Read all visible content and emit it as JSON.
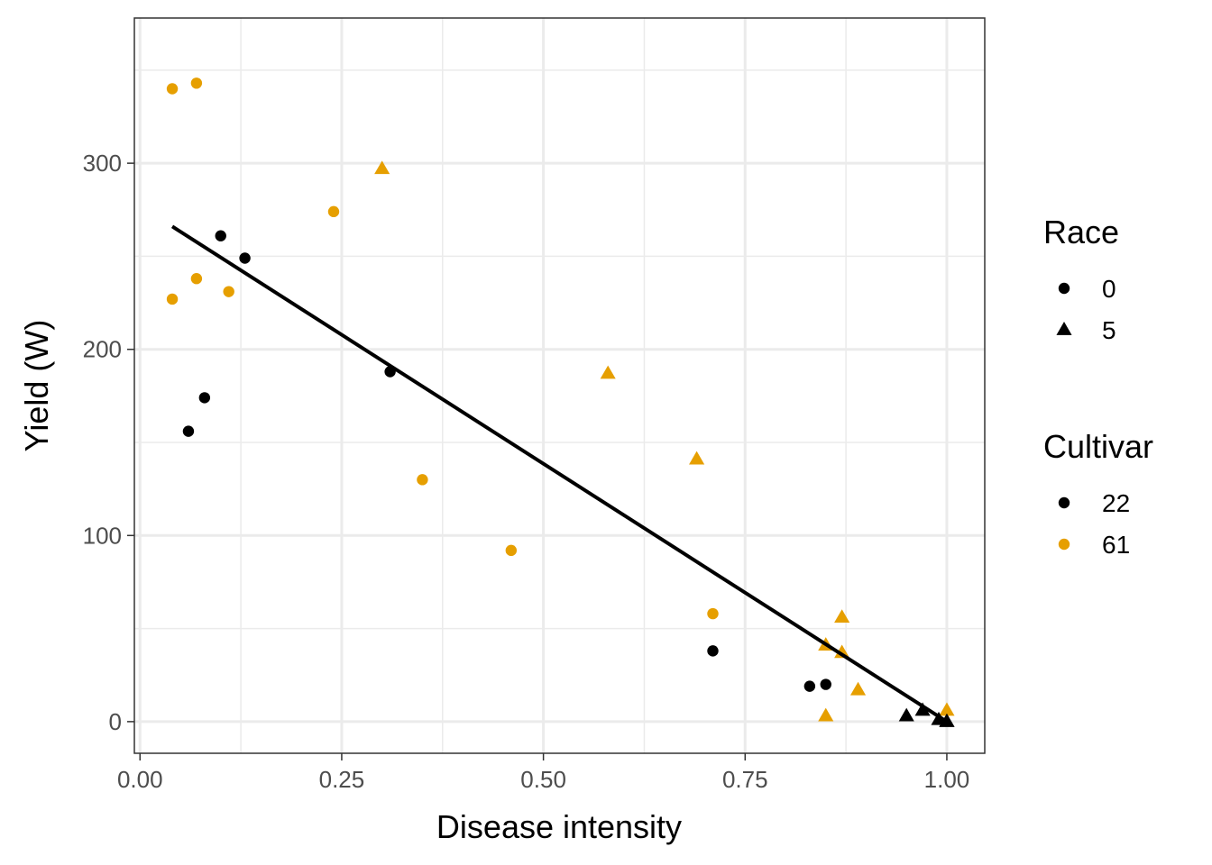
{
  "chart_data": {
    "type": "scatter",
    "title": "",
    "xlabel": "Disease intensity",
    "ylabel": "Yield (W)",
    "xlim": [
      -0.007,
      1.047
    ],
    "ylim": [
      -17,
      378
    ],
    "x_ticks": [
      0.0,
      0.25,
      0.5,
      0.75,
      1.0
    ],
    "x_tick_labels": [
      "0.00",
      "0.25",
      "0.50",
      "0.75",
      "1.00"
    ],
    "y_ticks": [
      0,
      100,
      200,
      300
    ],
    "y_tick_labels": [
      "0",
      "100",
      "200",
      "300"
    ],
    "grid": true,
    "legend_position": "right",
    "legends": [
      {
        "title": "Race",
        "entries": [
          {
            "label": "0",
            "shape": "circle",
            "color": "#000000"
          },
          {
            "label": "5",
            "shape": "triangle",
            "color": "#000000"
          }
        ]
      },
      {
        "title": "Cultivar",
        "entries": [
          {
            "label": "22",
            "shape": "circle",
            "color": "#000000"
          },
          {
            "label": "61",
            "shape": "circle",
            "color": "#E69F00"
          }
        ]
      }
    ],
    "colors": {
      "22": "#000000",
      "61": "#E69F00"
    },
    "points": [
      {
        "x": 0.04,
        "y": 340,
        "race": "0",
        "cultivar": "61"
      },
      {
        "x": 0.07,
        "y": 343,
        "race": "0",
        "cultivar": "61"
      },
      {
        "x": 0.04,
        "y": 227,
        "race": "0",
        "cultivar": "61"
      },
      {
        "x": 0.07,
        "y": 238,
        "race": "0",
        "cultivar": "61"
      },
      {
        "x": 0.11,
        "y": 231,
        "race": "0",
        "cultivar": "61"
      },
      {
        "x": 0.24,
        "y": 274,
        "race": "0",
        "cultivar": "61"
      },
      {
        "x": 0.35,
        "y": 130,
        "race": "0",
        "cultivar": "61"
      },
      {
        "x": 0.46,
        "y": 92,
        "race": "0",
        "cultivar": "61"
      },
      {
        "x": 0.71,
        "y": 58,
        "race": "0",
        "cultivar": "61"
      },
      {
        "x": 0.3,
        "y": 297,
        "race": "5",
        "cultivar": "61"
      },
      {
        "x": 0.58,
        "y": 187,
        "race": "5",
        "cultivar": "61"
      },
      {
        "x": 0.69,
        "y": 141,
        "race": "5",
        "cultivar": "61"
      },
      {
        "x": 0.87,
        "y": 56,
        "race": "5",
        "cultivar": "61"
      },
      {
        "x": 0.85,
        "y": 41,
        "race": "5",
        "cultivar": "61"
      },
      {
        "x": 0.87,
        "y": 37,
        "race": "5",
        "cultivar": "61"
      },
      {
        "x": 0.89,
        "y": 17,
        "race": "5",
        "cultivar": "61"
      },
      {
        "x": 0.85,
        "y": 3,
        "race": "5",
        "cultivar": "61"
      },
      {
        "x": 1.0,
        "y": 6,
        "race": "5",
        "cultivar": "61"
      },
      {
        "x": 0.1,
        "y": 261,
        "race": "0",
        "cultivar": "22"
      },
      {
        "x": 0.13,
        "y": 249,
        "race": "0",
        "cultivar": "22"
      },
      {
        "x": 0.08,
        "y": 174,
        "race": "0",
        "cultivar": "22"
      },
      {
        "x": 0.06,
        "y": 156,
        "race": "0",
        "cultivar": "22"
      },
      {
        "x": 0.31,
        "y": 188,
        "race": "0",
        "cultivar": "22"
      },
      {
        "x": 0.71,
        "y": 38,
        "race": "0",
        "cultivar": "22"
      },
      {
        "x": 0.83,
        "y": 19,
        "race": "0",
        "cultivar": "22"
      },
      {
        "x": 0.85,
        "y": 20,
        "race": "0",
        "cultivar": "22"
      },
      {
        "x": 0.95,
        "y": 3,
        "race": "5",
        "cultivar": "22"
      },
      {
        "x": 0.97,
        "y": 6,
        "race": "5",
        "cultivar": "22"
      },
      {
        "x": 0.99,
        "y": 1,
        "race": "5",
        "cultivar": "22"
      },
      {
        "x": 1.0,
        "y": 0,
        "race": "5",
        "cultivar": "22"
      },
      {
        "x": 1.0,
        "y": 0,
        "race": "5",
        "cultivar": "22"
      }
    ],
    "fit_line": {
      "x": [
        0.04,
        1.0
      ],
      "y": [
        266,
        0
      ],
      "color": "#000000"
    }
  }
}
